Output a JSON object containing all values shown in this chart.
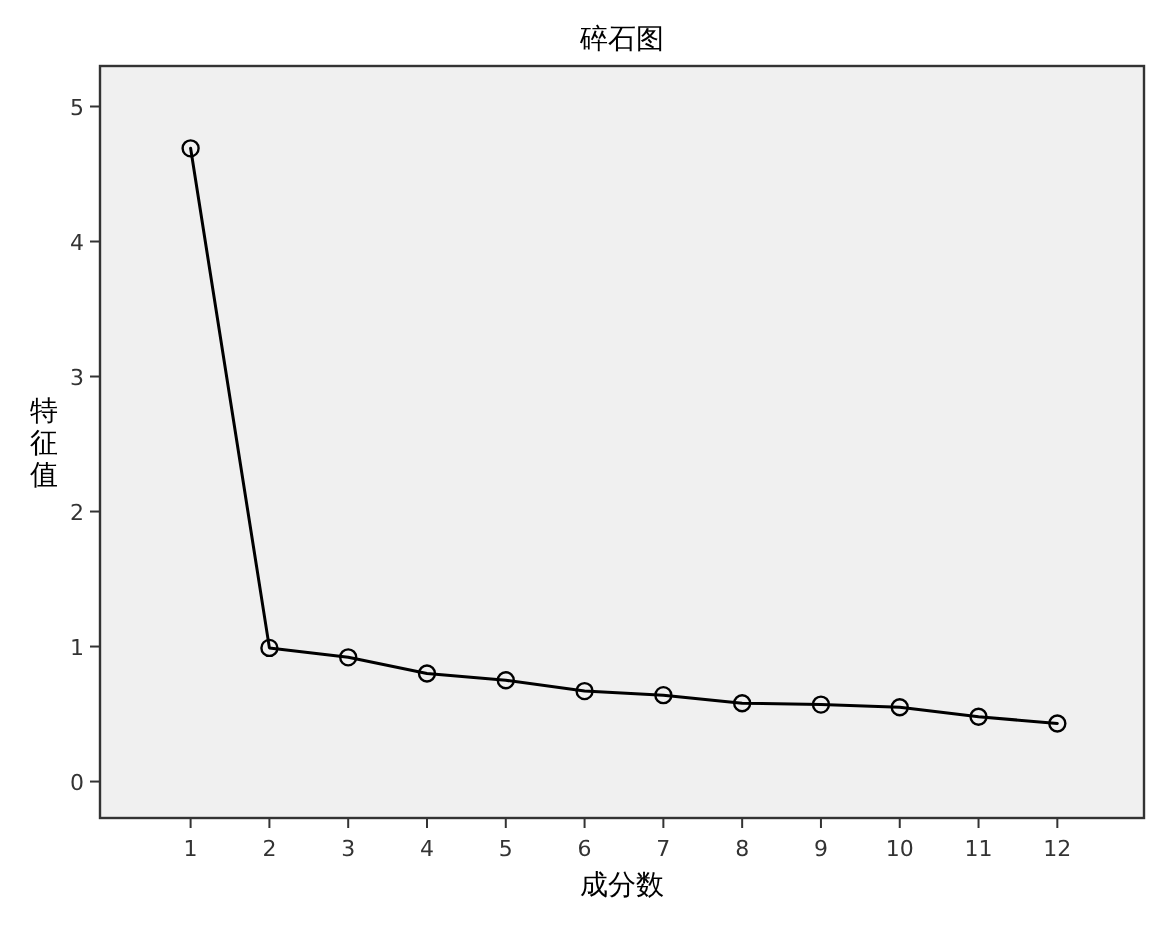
{
  "chart_data": {
    "type": "line",
    "title": "碎石图",
    "xlabel": "成分数",
    "ylabel": "特征值",
    "x": [
      1,
      2,
      3,
      4,
      5,
      6,
      7,
      8,
      9,
      10,
      11,
      12
    ],
    "series": [
      {
        "color": "#000000",
        "values": [
          4.69,
          0.99,
          0.92,
          0.8,
          0.75,
          0.67,
          0.64,
          0.58,
          0.57,
          0.55,
          0.48,
          0.43
        ]
      }
    ],
    "xlim": [
      -0.15,
      13.1
    ],
    "xticks": [
      1,
      2,
      3,
      4,
      5,
      6,
      7,
      8,
      9,
      10,
      11,
      12
    ],
    "ylim": [
      -0.27,
      5.3
    ],
    "yticks": [
      0,
      1,
      2,
      3,
      4,
      5
    ],
    "marker": "circle",
    "line_style": "solid",
    "grid": false
  }
}
